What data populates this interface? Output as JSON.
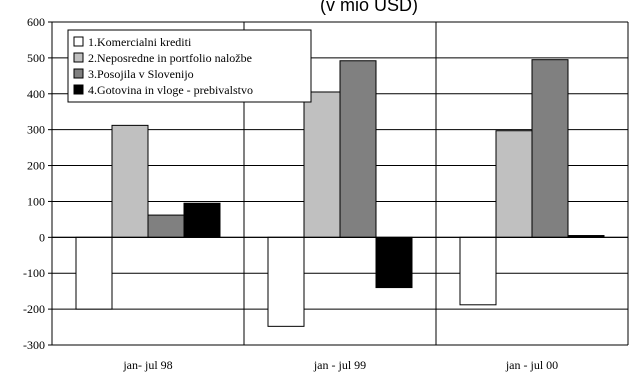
{
  "chart_data": {
    "type": "bar",
    "title": "",
    "title_fragment": "(v mio USD)",
    "xlabel": "",
    "ylabel": "",
    "ylim": [
      -300,
      600
    ],
    "yticks": [
      -300,
      -200,
      -100,
      0,
      100,
      200,
      300,
      400,
      500,
      600
    ],
    "grid": "horizontal",
    "legend_position": "top-left",
    "categories": [
      "jan- jul 98",
      "jan - jul 99",
      "jan - jul 00"
    ],
    "series": [
      {
        "name": "1.Komercialni krediti",
        "color": "#ffffff",
        "values": [
          -200,
          -248,
          -188
        ]
      },
      {
        "name": "2.Neposredne in portfolio naložbe",
        "color": "#c0c0c0",
        "values": [
          312,
          405,
          297
        ]
      },
      {
        "name": "3.Posojila v Slovenijo",
        "color": "#808080",
        "values": [
          62,
          492,
          495
        ]
      },
      {
        "name": "4.Gotovina in vloge - prebivalstvo",
        "color": "#000000",
        "values": [
          95,
          -140,
          5
        ]
      }
    ]
  }
}
